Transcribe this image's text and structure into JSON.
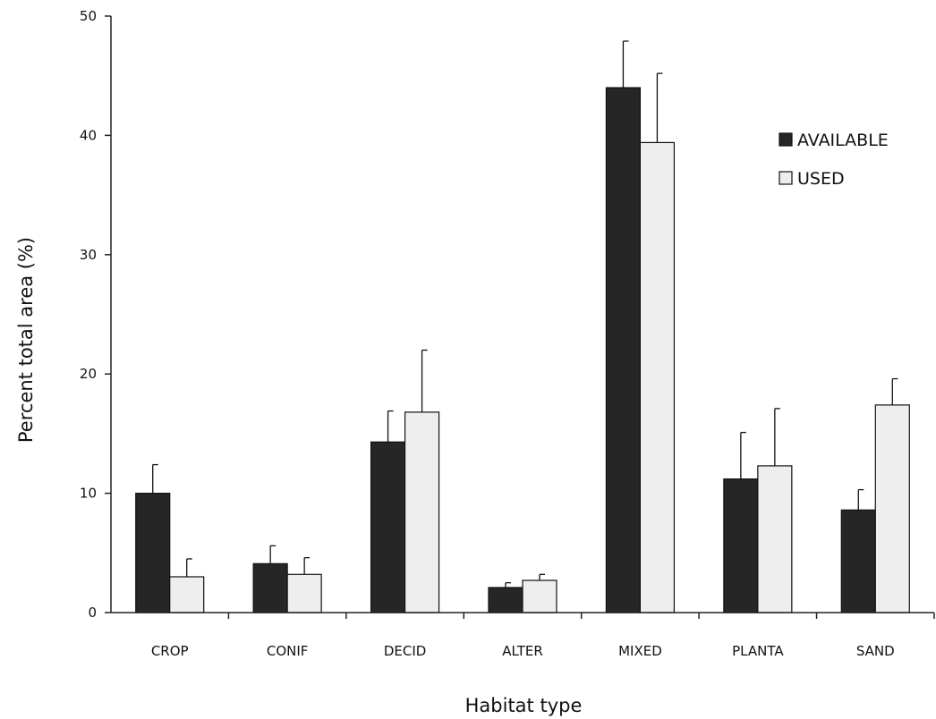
{
  "chart_data": {
    "type": "bar",
    "title": "",
    "xlabel": "Habitat type",
    "ylabel": "Percent total area (%)",
    "ylim": [
      0,
      50
    ],
    "yticks": [
      0,
      10,
      20,
      30,
      40,
      50
    ],
    "grid": false,
    "legend_position": "top-right",
    "categories": [
      "CROP",
      "CONIF",
      "DECID",
      "ALTER",
      "MIXED",
      "PLANTA",
      "SAND"
    ],
    "series": [
      {
        "name": "AVAILABLE",
        "color": "#262626",
        "values": [
          10.0,
          4.1,
          14.3,
          2.1,
          44.0,
          11.2,
          8.6
        ],
        "error": [
          2.4,
          1.5,
          2.6,
          0.4,
          3.9,
          3.9,
          1.7
        ]
      },
      {
        "name": "USED",
        "color": "#eeeeee",
        "values": [
          3.0,
          3.2,
          16.8,
          2.7,
          39.4,
          12.3,
          17.4
        ],
        "error": [
          1.5,
          1.4,
          5.2,
          0.5,
          5.8,
          4.8,
          2.2
        ]
      }
    ]
  }
}
